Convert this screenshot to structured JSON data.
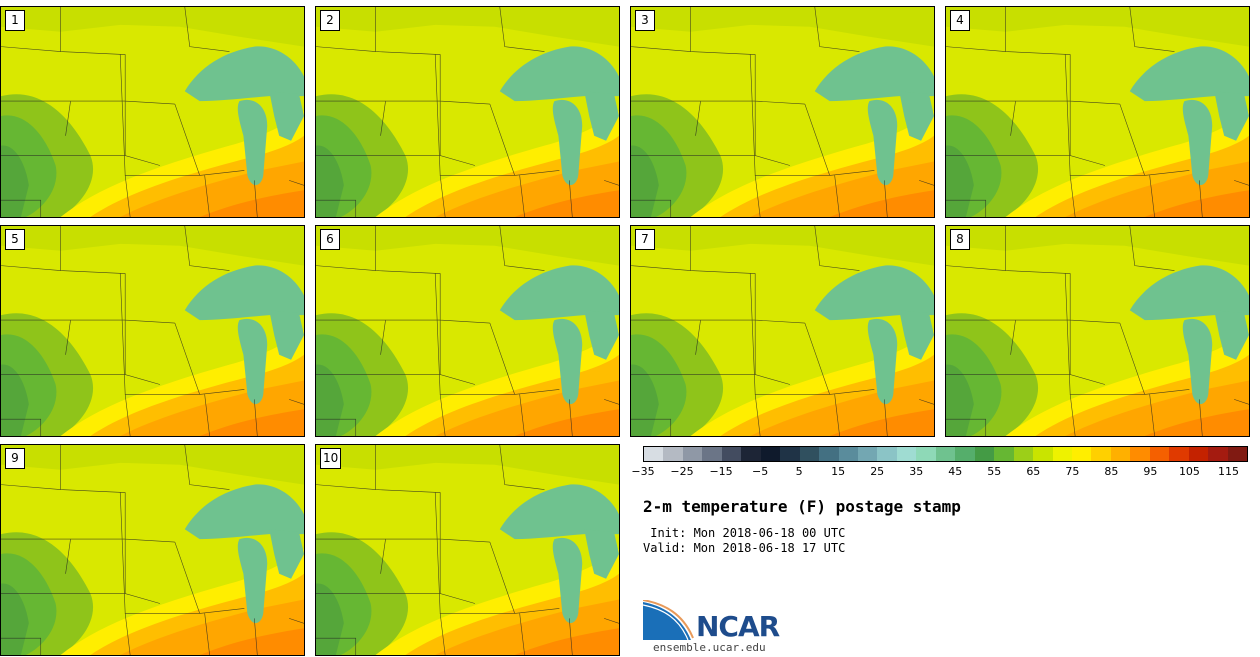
{
  "panels": [
    {
      "label": "1"
    },
    {
      "label": "2"
    },
    {
      "label": "3"
    },
    {
      "label": "4"
    },
    {
      "label": "5"
    },
    {
      "label": "6"
    },
    {
      "label": "7"
    },
    {
      "label": "8"
    },
    {
      "label": "9"
    },
    {
      "label": "10"
    }
  ],
  "colorbar": {
    "colors": [
      "#d7dde3",
      "#b4bac3",
      "#8f98a6",
      "#6b7587",
      "#434c60",
      "#1d2536",
      "#0f1a2c",
      "#1f3346",
      "#30505f",
      "#437082",
      "#5a8c9c",
      "#73a7b2",
      "#8bc4c6",
      "#9fdcd2",
      "#8ed9b7",
      "#6fc28f",
      "#55ae6b",
      "#449b45",
      "#66b733",
      "#9ccf18",
      "#c9e400",
      "#eef200",
      "#ffee00",
      "#ffd000",
      "#ffb000",
      "#ff8c00",
      "#f56000",
      "#e03a00",
      "#c42200",
      "#a41b10",
      "#801a12"
    ],
    "tick_labels": [
      "−35",
      "−25",
      "−15",
      "−5",
      "5",
      "15",
      "25",
      "35",
      "45",
      "55",
      "65",
      "75",
      "85",
      "95",
      "105",
      "115"
    ]
  },
  "title": "2-m temperature (F) postage stamp",
  "init": " Init: Mon 2018-06-18 00 UTC",
  "valid": "Valid: Mon 2018-06-18 17 UTC",
  "logo_text": "NCAR",
  "url": "ensemble.ucar.edu"
}
